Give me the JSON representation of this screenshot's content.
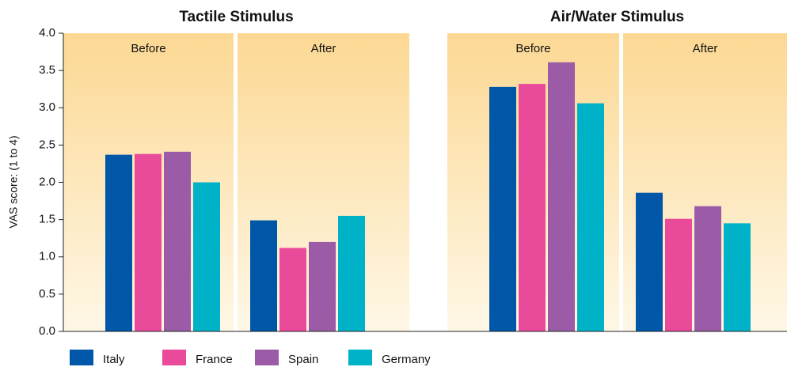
{
  "chart_data": {
    "type": "bar",
    "y_label": "VAS score: (1 to 4)",
    "ylim": [
      0,
      4
    ],
    "yticks": [
      {
        "value": 0,
        "label": "0.0"
      },
      {
        "value": 0.5,
        "label": "0.5"
      },
      {
        "value": 1,
        "label": "1.0"
      },
      {
        "value": 1.5,
        "label": "1.5"
      },
      {
        "value": 2,
        "label": "2.0"
      },
      {
        "value": 2.5,
        "label": "2.5"
      },
      {
        "value": 3,
        "label": "3.0"
      },
      {
        "value": 3.5,
        "label": "3.5"
      },
      {
        "value": 4,
        "label": "4.0"
      }
    ],
    "panels": [
      {
        "title": "Tactile Stimulus",
        "categories": [
          "Before",
          "After"
        ]
      },
      {
        "title": "Air/Water Stimulus",
        "categories": [
          "Before",
          "After"
        ]
      }
    ],
    "series": [
      {
        "name": "Italy",
        "color": "#0057a8",
        "values": [
          2.37,
          1.49,
          3.28,
          1.86
        ]
      },
      {
        "name": "France",
        "color": "#ea4a9a",
        "values": [
          2.38,
          1.12,
          3.32,
          1.51
        ]
      },
      {
        "name": "Spain",
        "color": "#9b5ba6",
        "values": [
          2.41,
          1.2,
          3.61,
          1.68
        ]
      },
      {
        "name": "Germany",
        "color": "#00b2c8",
        "values": [
          2.0,
          1.55,
          3.06,
          1.45
        ]
      }
    ]
  }
}
